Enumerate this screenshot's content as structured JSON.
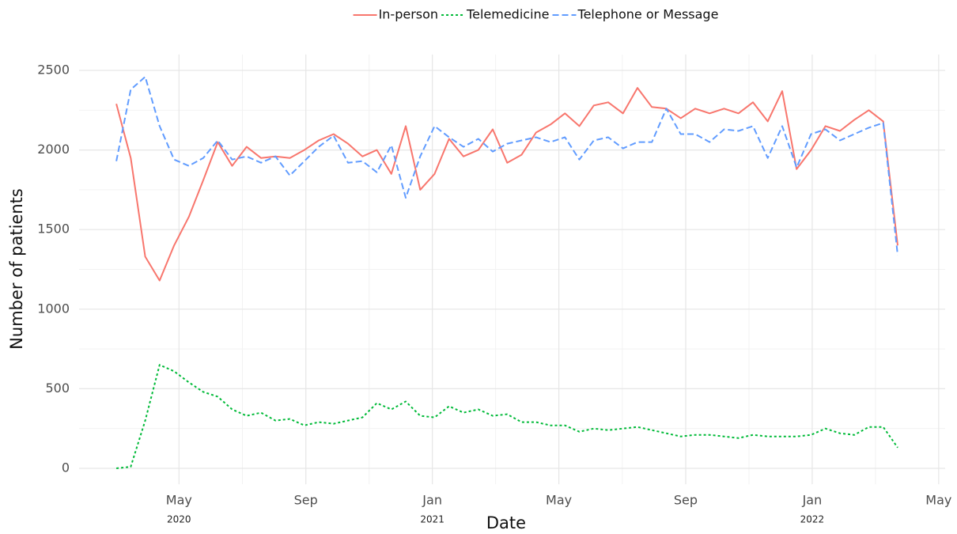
{
  "chart_data": {
    "type": "line",
    "xlabel": "Date",
    "ylabel": "Number of patients",
    "x": [
      2020.168,
      2020.206,
      2020.244,
      2020.282,
      2020.32,
      2020.359,
      2020.397,
      2020.435,
      2020.473,
      2020.511,
      2020.549,
      2020.587,
      2020.625,
      2020.663,
      2020.701,
      2020.74,
      2020.778,
      2020.816,
      2020.854,
      2020.892,
      2020.93,
      2020.968,
      2021.006,
      2021.044,
      2021.082,
      2021.121,
      2021.159,
      2021.197,
      2021.235,
      2021.273,
      2021.311,
      2021.349,
      2021.387,
      2021.425,
      2021.463,
      2021.502,
      2021.54,
      2021.578,
      2021.616,
      2021.654,
      2021.692,
      2021.73,
      2021.768,
      2021.806,
      2021.844,
      2021.883,
      2021.921,
      2021.959,
      2021.997,
      2022.035,
      2022.073,
      2022.111,
      2022.149,
      2022.187,
      2022.225
    ],
    "series": [
      {
        "name": "In-person",
        "color": "#F8766D",
        "dash": "solid",
        "values": [
          2290,
          1950,
          1330,
          1180,
          1400,
          1580,
          1810,
          2050,
          1900,
          2020,
          1950,
          1960,
          1950,
          2000,
          2060,
          2100,
          2040,
          1960,
          2000,
          1850,
          2150,
          1750,
          1850,
          2070,
          1960,
          2000,
          2130,
          1920,
          1970,
          2110,
          2160,
          2230,
          2150,
          2280,
          2300,
          2230,
          2390,
          2270,
          2260,
          2200,
          2260,
          2230,
          2260,
          2230,
          2300,
          2180,
          2370,
          1880,
          2000,
          2150,
          2120,
          2190,
          2250,
          2180,
          1400
        ]
      },
      {
        "name": "Telemedicine",
        "color": "#00BA38",
        "dash": "dotted",
        "values": [
          0,
          10,
          300,
          650,
          610,
          540,
          480,
          450,
          370,
          330,
          350,
          300,
          310,
          270,
          290,
          280,
          300,
          320,
          410,
          370,
          420,
          330,
          320,
          390,
          350,
          370,
          330,
          340,
          290,
          290,
          270,
          270,
          230,
          250,
          240,
          250,
          260,
          240,
          220,
          200,
          210,
          210,
          200,
          190,
          210,
          200,
          200,
          200,
          210,
          250,
          220,
          210,
          260,
          260,
          130
        ]
      },
      {
        "name": "Telephone or Message",
        "color": "#619CFF",
        "dash": "dashed",
        "values": [
          1930,
          2380,
          2460,
          2150,
          1940,
          1900,
          1950,
          2060,
          1940,
          1960,
          1920,
          1960,
          1840,
          1930,
          2020,
          2090,
          1920,
          1930,
          1860,
          2030,
          1700,
          1960,
          2150,
          2080,
          2020,
          2070,
          1990,
          2040,
          2060,
          2080,
          2050,
          2080,
          1940,
          2060,
          2080,
          2010,
          2050,
          2050,
          2260,
          2100,
          2100,
          2050,
          2130,
          2120,
          2150,
          1950,
          2150,
          1890,
          2100,
          2130,
          2060,
          2100,
          2140,
          2170,
          1340
        ]
      }
    ],
    "xlim": [
      2020.07,
      2022.35
    ],
    "xticks": [
      {
        "value": 2020.333,
        "label": "May",
        "year": "2020"
      },
      {
        "value": 2020.667,
        "label": "Sep"
      },
      {
        "value": 2021.0,
        "label": "Jan",
        "year": "2021"
      },
      {
        "value": 2021.333,
        "label": "May"
      },
      {
        "value": 2021.667,
        "label": "Sep"
      },
      {
        "value": 2022.0,
        "label": "Jan",
        "year": "2022"
      },
      {
        "value": 2022.333,
        "label": "May"
      }
    ],
    "ylim": [
      -100,
      2600
    ],
    "yticks": [
      0,
      500,
      1000,
      1500,
      2000,
      2500
    ],
    "grid": true,
    "minor_grid": true,
    "legend": "top"
  }
}
